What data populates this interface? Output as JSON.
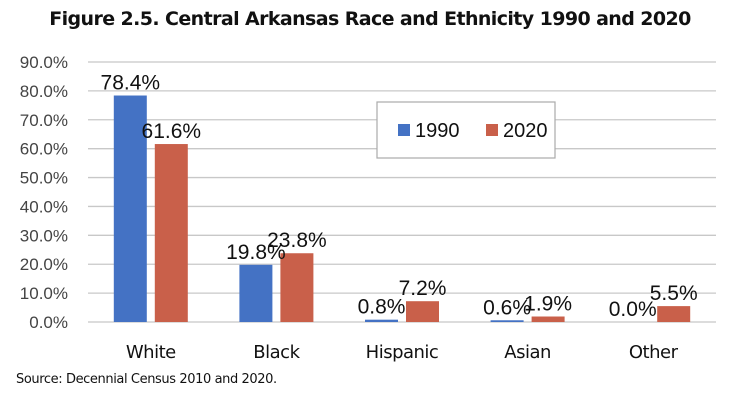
{
  "chart_data": {
    "type": "bar",
    "title": "Figure 2.5. Central Arkansas Race and Ethnicity 1990 and 2020",
    "xlabel": "",
    "ylabel": "",
    "categories": [
      "White",
      "Black",
      "Hispanic",
      "Asian",
      "Other"
    ],
    "series": [
      {
        "name": "1990",
        "color": "#4472c4",
        "values": [
          78.4,
          19.8,
          0.8,
          0.6,
          0.0
        ],
        "labels": [
          "78.4%",
          "19.8%",
          "0.8%",
          "0.6%",
          "0.0%"
        ]
      },
      {
        "name": "2020",
        "color": "#c9604a",
        "values": [
          61.6,
          23.8,
          7.2,
          1.9,
          5.5
        ],
        "labels": [
          "61.6%",
          "23.8%",
          "7.2%",
          "1.9%",
          "5.5%"
        ]
      }
    ],
    "ylim": [
      0,
      90
    ],
    "yticks": [
      0,
      10,
      20,
      30,
      40,
      50,
      60,
      70,
      80,
      90
    ],
    "ytick_labels": [
      "0.0%",
      "10.0%",
      "20.0%",
      "30.0%",
      "40.0%",
      "50.0%",
      "60.0%",
      "70.0%",
      "80.0%",
      "90.0%"
    ],
    "grid": true,
    "legend": {
      "placement": "top-center",
      "entries": [
        "1990",
        "2020"
      ]
    },
    "source": "Source: Decennial Census 2010 and 2020."
  }
}
